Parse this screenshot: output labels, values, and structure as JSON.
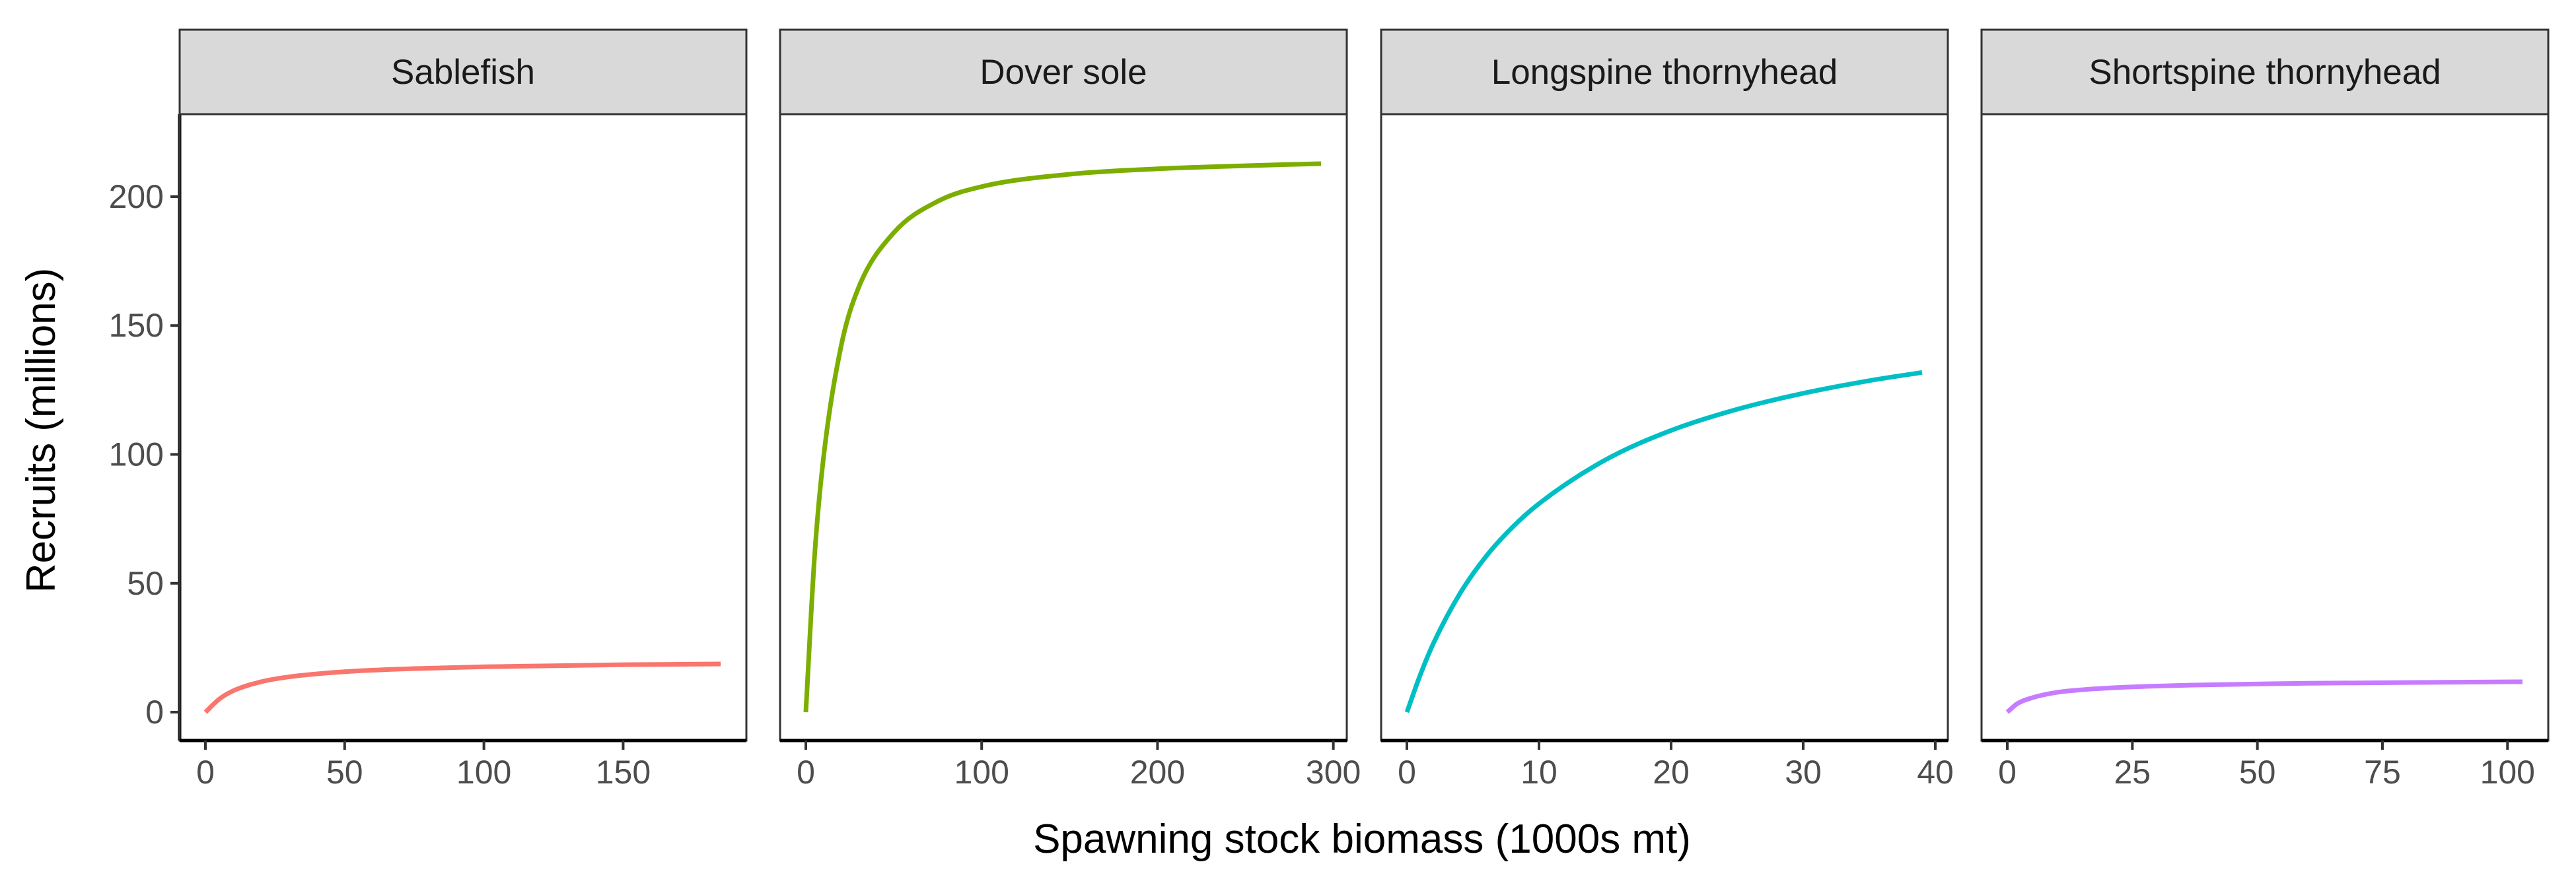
{
  "chart_data": {
    "type": "line",
    "layout": "facet-row",
    "xlabel": "Spawning stock biomass (1000s mt)",
    "ylabel": "Recruits (millions)",
    "ylim": [
      -11,
      232
    ],
    "yticks": [
      0,
      50,
      100,
      150,
      200
    ],
    "ytick_labels": [
      "0",
      "50",
      "100",
      "150",
      "200"
    ],
    "grid": false,
    "legend": "none",
    "panels": [
      {
        "title": "Sablefish",
        "color": "#F8766D",
        "x_max": 185,
        "xlim": [
          -9.25,
          194.25
        ],
        "xticks": [
          0,
          50,
          100,
          150
        ],
        "xtick_labels": [
          "0",
          "50",
          "100",
          "150"
        ],
        "x": [
          0,
          5,
          10,
          20,
          30,
          50,
          75,
          100,
          125,
          150,
          185
        ],
        "y": [
          0,
          5.1,
          8.3,
          11.8,
          13.7,
          15.7,
          16.9,
          17.6,
          18.0,
          18.4,
          18.7
        ]
      },
      {
        "title": "Dover sole",
        "color": "#7CAE00",
        "x_max": 293,
        "xlim": [
          -14.65,
          307.65
        ],
        "xticks": [
          0,
          100,
          200,
          300
        ],
        "xtick_labels": [
          "0",
          "100",
          "200",
          "300"
        ],
        "x": [
          0,
          5,
          10,
          20,
          30,
          50,
          75,
          100,
          150,
          200,
          250,
          293
        ],
        "y": [
          0,
          60.8,
          98.4,
          141.8,
          164.7,
          186.0,
          198.2,
          203.9,
          208.7,
          210.8,
          212.0,
          212.8
        ]
      },
      {
        "title": "Longspine thornyhead",
        "color": "#00BFC4",
        "x_max": 39,
        "xlim": [
          -1.95,
          40.95
        ],
        "xticks": [
          0,
          10,
          20,
          30,
          40
        ],
        "xtick_labels": [
          "0",
          "10",
          "20",
          "30",
          "40"
        ],
        "x": [
          0,
          1,
          2,
          4,
          6,
          8,
          10,
          15,
          20,
          25,
          30,
          35,
          39
        ],
        "y": [
          0,
          14.3,
          26.6,
          45.9,
          60.5,
          71.8,
          80.9,
          97.8,
          109.3,
          117.5,
          123.7,
          128.6,
          131.8
        ]
      },
      {
        "title": "Shortspine thornyhead",
        "color": "#C77CFF",
        "x_max": 103,
        "xlim": [
          -5.15,
          108.15
        ],
        "xticks": [
          0,
          25,
          50,
          75,
          100
        ],
        "xtick_labels": [
          "0",
          "25",
          "50",
          "75",
          "100"
        ],
        "x": [
          0,
          2,
          5,
          10,
          15,
          25,
          40,
          60,
          80,
          103
        ],
        "y": [
          0,
          3.3,
          5.6,
          7.7,
          8.7,
          9.8,
          10.6,
          11.2,
          11.5,
          11.8
        ]
      }
    ]
  }
}
